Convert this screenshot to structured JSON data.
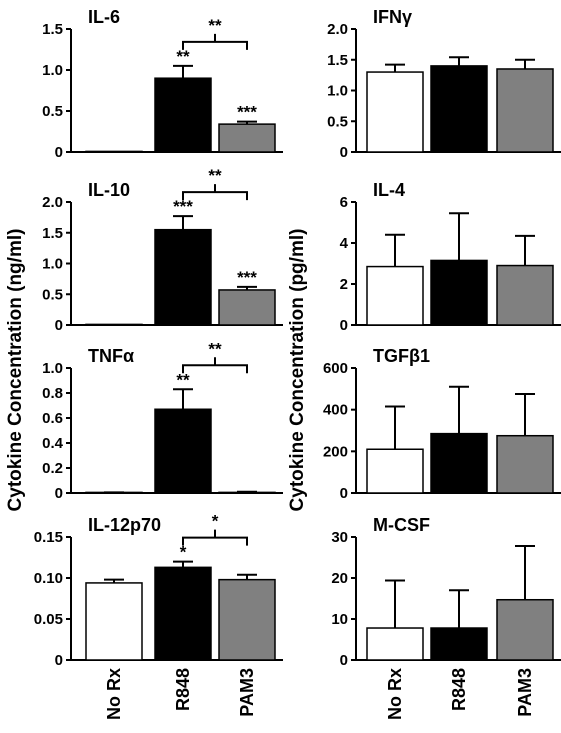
{
  "figure": {
    "left_ylabel": "Cytokine Concentration (ng/ml)",
    "right_ylabel": "Cytokine Concentration (pg/ml)",
    "bar_colors": {
      "No Rx": "#ffffff",
      "R848": "#000000",
      "PAM3": "#808080"
    }
  },
  "chart_data": [
    {
      "type": "bar",
      "title": "IL-6",
      "categories": [
        "No Rx",
        "R848",
        "PAM3"
      ],
      "values": [
        0,
        0.9,
        0.34
      ],
      "errors": [
        0,
        0.15,
        0.03
      ],
      "ylim": [
        0,
        1.5
      ],
      "yticks": [
        "0",
        "0.5",
        "1.0",
        "1.5"
      ],
      "bar_labels": [
        "",
        "**",
        "***"
      ],
      "comparison": {
        "between": [
          "R848",
          "PAM3"
        ],
        "label": "**"
      }
    },
    {
      "type": "bar",
      "title": "IFNγ",
      "categories": [
        "No Rx",
        "R848",
        "PAM3"
      ],
      "values": [
        1.3,
        1.4,
        1.35
      ],
      "errors": [
        0.12,
        0.14,
        0.15
      ],
      "ylim": [
        0,
        2.0
      ],
      "yticks": [
        "0",
        "0.5",
        "1.0",
        "1.5",
        "2.0"
      ],
      "bar_labels": [
        "",
        "",
        ""
      ]
    },
    {
      "type": "bar",
      "title": "IL-10",
      "categories": [
        "No Rx",
        "R848",
        "PAM3"
      ],
      "values": [
        0,
        1.55,
        0.57
      ],
      "errors": [
        0,
        0.22,
        0.05
      ],
      "ylim": [
        0,
        2.0
      ],
      "yticks": [
        "0",
        "0.5",
        "1.0",
        "1.5",
        "2.0"
      ],
      "bar_labels": [
        "",
        "***",
        "***"
      ],
      "comparison": {
        "between": [
          "R848",
          "PAM3"
        ],
        "label": "**"
      }
    },
    {
      "type": "bar",
      "title": "IL-4",
      "categories": [
        "No Rx",
        "R848",
        "PAM3"
      ],
      "values": [
        2.85,
        3.15,
        2.9
      ],
      "errors": [
        1.55,
        2.3,
        1.45
      ],
      "ylim": [
        0,
        6
      ],
      "yticks": [
        "0",
        "2",
        "4",
        "6"
      ],
      "bar_labels": [
        "",
        "",
        ""
      ]
    },
    {
      "type": "bar",
      "title": "TNFα",
      "categories": [
        "No Rx",
        "R848",
        "PAM3"
      ],
      "values": [
        0.002,
        0.67,
        0.005
      ],
      "errors": [
        0.003,
        0.16,
        0.005
      ],
      "ylim": [
        0,
        1.0
      ],
      "yticks": [
        "0",
        "0.2",
        "0.4",
        "0.6",
        "0.8",
        "1.0"
      ],
      "bar_labels": [
        "",
        "**",
        ""
      ],
      "comparison": {
        "between": [
          "R848",
          "PAM3"
        ],
        "label": "**"
      }
    },
    {
      "type": "bar",
      "title": "TGFβ1",
      "categories": [
        "No Rx",
        "R848",
        "PAM3"
      ],
      "values": [
        210,
        285,
        275
      ],
      "errors": [
        205,
        225,
        200
      ],
      "ylim": [
        0,
        600
      ],
      "yticks": [
        "0",
        "200",
        "400",
        "600"
      ],
      "bar_labels": [
        "",
        "",
        ""
      ]
    },
    {
      "type": "bar",
      "title": "IL-12p70",
      "categories": [
        "No Rx",
        "R848",
        "PAM3"
      ],
      "values": [
        0.094,
        0.113,
        0.098
      ],
      "errors": [
        0.004,
        0.007,
        0.006
      ],
      "ylim": [
        0,
        0.15
      ],
      "yticks": [
        "0",
        "0.05",
        "0.10",
        "0.15"
      ],
      "bar_labels": [
        "",
        "*",
        ""
      ],
      "comparison": {
        "between": [
          "R848",
          "PAM3"
        ],
        "label": "*"
      }
    },
    {
      "type": "bar",
      "title": "M-CSF",
      "categories": [
        "No Rx",
        "R848",
        "PAM3"
      ],
      "values": [
        7.8,
        7.8,
        14.7
      ],
      "errors": [
        11.6,
        9.2,
        13.1
      ],
      "ylim": [
        0,
        30
      ],
      "yticks": [
        "0",
        "10",
        "20",
        "30"
      ],
      "bar_labels": [
        "",
        "",
        ""
      ]
    }
  ]
}
